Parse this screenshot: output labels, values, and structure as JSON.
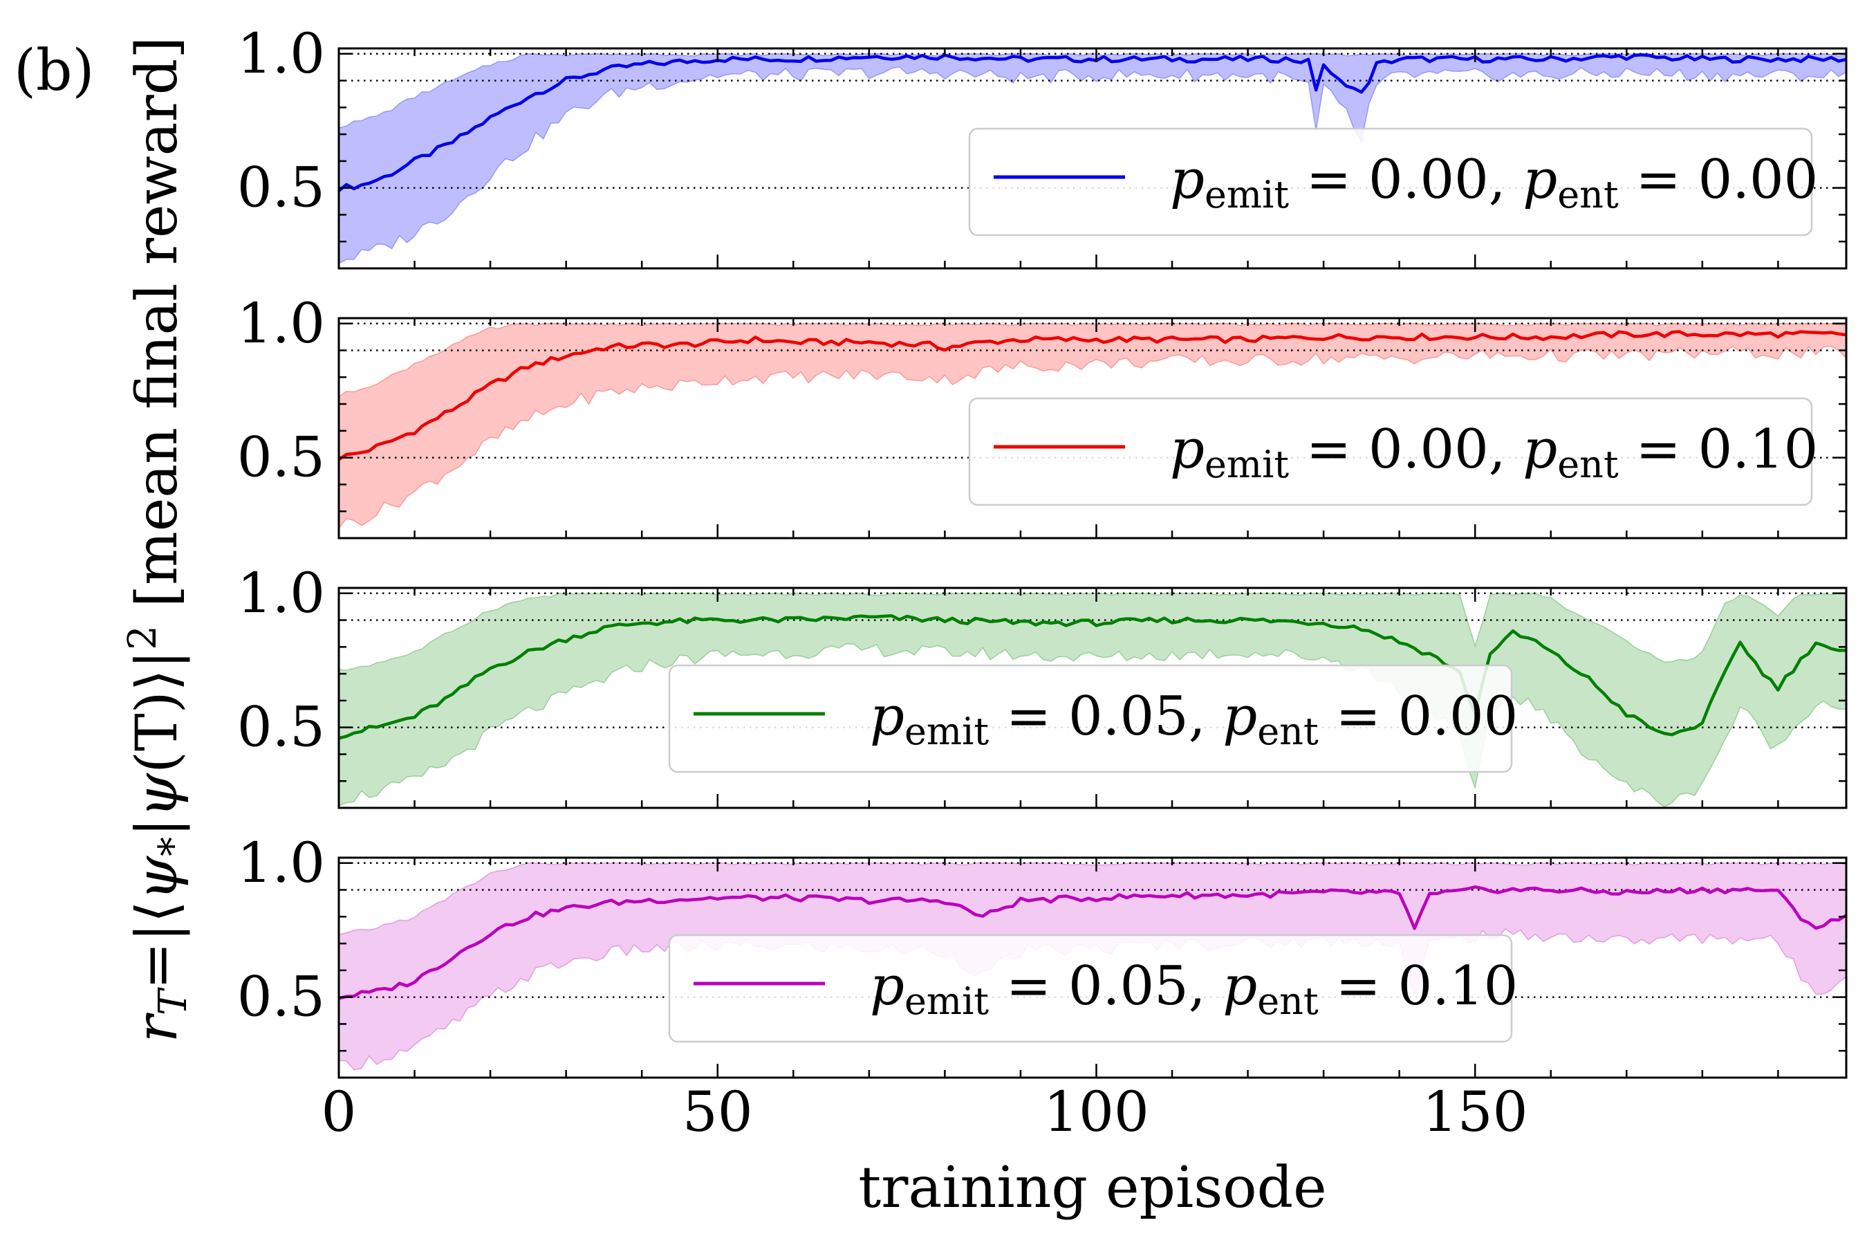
{
  "panel_label": "(b)",
  "ylabel": {
    "r": "r",
    "r_sub": "T",
    "eq": "=|⟨",
    "psi": "ψ",
    "psi_sub": "*",
    "bar": "|",
    "psi2": "ψ",
    "paren": "(T)⟩|",
    "sup": "2",
    "rest": " [mean final reward]"
  },
  "xlabel": "training episode",
  "yticks": [
    "0.5",
    "1.0"
  ],
  "xticks": [
    "0",
    "50",
    "100",
    "150"
  ],
  "chart_data": [
    {
      "type": "line",
      "title": "",
      "xlabel": "training episode",
      "ylabel": "r_T=|⟨ψ*|ψ(T)⟩|² [mean final reward]",
      "xlim": [
        0,
        199
      ],
      "ylim": [
        0.2,
        1.02
      ],
      "yticks": [
        0.5,
        1.0
      ],
      "reference_lines": [
        0.5,
        0.9,
        1.0
      ],
      "color": "#0000ee",
      "fill_color": "#a8a8ff",
      "legend": {
        "p_emit": "0.00",
        "p_ent": "0.00",
        "placement": "right"
      },
      "series": [
        {
          "name": "p_emit = 0.00, p_ent = 0.00",
          "anchors_x": [
            0,
            3,
            6,
            10,
            15,
            20,
            25,
            30,
            35,
            40,
            45,
            50,
            60,
            70,
            80,
            90,
            100,
            110,
            120,
            125,
            128,
            129,
            130,
            131,
            132,
            133,
            134,
            135,
            136,
            137,
            140,
            145,
            150,
            160,
            170,
            180,
            190,
            199
          ],
          "mean": [
            0.5,
            0.51,
            0.54,
            0.6,
            0.67,
            0.76,
            0.84,
            0.9,
            0.94,
            0.96,
            0.97,
            0.98,
            0.98,
            0.99,
            0.99,
            0.98,
            0.98,
            0.98,
            0.98,
            0.98,
            0.97,
            0.87,
            0.96,
            0.92,
            0.9,
            0.89,
            0.87,
            0.85,
            0.9,
            0.96,
            0.98,
            0.98,
            0.98,
            0.98,
            0.99,
            0.98,
            0.98,
            0.98
          ],
          "upper": [
            0.73,
            0.75,
            0.78,
            0.84,
            0.9,
            0.96,
            1.0,
            1.0,
            1.0,
            1.0,
            1.0,
            1.0,
            1.0,
            1.0,
            1.0,
            1.0,
            1.0,
            1.0,
            1.0,
            1.0,
            1.0,
            1.0,
            1.0,
            1.0,
            1.0,
            1.0,
            1.0,
            1.0,
            1.0,
            1.0,
            1.0,
            1.0,
            1.0,
            1.0,
            1.0,
            1.0,
            1.0,
            1.0
          ],
          "lower": [
            0.23,
            0.25,
            0.28,
            0.33,
            0.42,
            0.55,
            0.66,
            0.77,
            0.84,
            0.88,
            0.9,
            0.92,
            0.92,
            0.93,
            0.93,
            0.91,
            0.92,
            0.92,
            0.92,
            0.91,
            0.88,
            0.7,
            0.88,
            0.84,
            0.8,
            0.78,
            0.72,
            0.68,
            0.8,
            0.88,
            0.92,
            0.92,
            0.92,
            0.92,
            0.93,
            0.92,
            0.92,
            0.92
          ]
        }
      ]
    },
    {
      "type": "line",
      "title": "",
      "xlabel": "training episode",
      "ylabel": "",
      "xlim": [
        0,
        199
      ],
      "ylim": [
        0.2,
        1.02
      ],
      "yticks": [
        0.5,
        1.0
      ],
      "reference_lines": [
        0.5,
        0.9,
        1.0
      ],
      "color": "#ee0000",
      "fill_color": "#ffb0b0",
      "legend": {
        "p_emit": "0.00",
        "p_ent": "0.10",
        "placement": "right"
      },
      "series": [
        {
          "name": "p_emit = 0.00, p_ent = 0.10",
          "anchors_x": [
            0,
            3,
            6,
            10,
            15,
            20,
            25,
            30,
            35,
            40,
            45,
            50,
            55,
            60,
            70,
            78,
            80,
            85,
            90,
            100,
            110,
            120,
            130,
            140,
            150,
            160,
            170,
            180,
            190,
            199
          ],
          "mean": [
            0.5,
            0.52,
            0.55,
            0.6,
            0.68,
            0.77,
            0.84,
            0.88,
            0.91,
            0.92,
            0.92,
            0.93,
            0.94,
            0.93,
            0.93,
            0.92,
            0.91,
            0.93,
            0.94,
            0.94,
            0.94,
            0.94,
            0.95,
            0.95,
            0.95,
            0.95,
            0.96,
            0.96,
            0.96,
            0.96
          ],
          "upper": [
            0.73,
            0.76,
            0.79,
            0.85,
            0.92,
            0.98,
            1.0,
            1.0,
            1.0,
            1.0,
            1.0,
            1.0,
            1.0,
            1.0,
            1.0,
            1.0,
            1.0,
            1.0,
            1.0,
            1.0,
            1.0,
            1.0,
            1.0,
            1.0,
            1.0,
            1.0,
            1.0,
            1.0,
            1.0,
            1.0
          ],
          "lower": [
            0.25,
            0.27,
            0.31,
            0.37,
            0.46,
            0.56,
            0.64,
            0.7,
            0.74,
            0.76,
            0.77,
            0.79,
            0.8,
            0.8,
            0.81,
            0.8,
            0.79,
            0.82,
            0.84,
            0.85,
            0.86,
            0.86,
            0.87,
            0.87,
            0.88,
            0.88,
            0.88,
            0.89,
            0.89,
            0.89
          ]
        }
      ]
    },
    {
      "type": "line",
      "title": "",
      "xlabel": "training episode",
      "ylabel": "",
      "xlim": [
        0,
        199
      ],
      "ylim": [
        0.2,
        1.02
      ],
      "yticks": [
        0.5,
        1.0
      ],
      "reference_lines": [
        0.5,
        0.9,
        1.0
      ],
      "color": "#008000",
      "fill_color": "#b6dcb6",
      "legend": {
        "p_emit": "0.05",
        "p_ent": "0.00",
        "placement": "center"
      },
      "series": [
        {
          "name": "p_emit = 0.05, p_ent = 0.00",
          "anchors_x": [
            0,
            5,
            10,
            15,
            20,
            25,
            30,
            35,
            40,
            50,
            60,
            70,
            80,
            90,
            100,
            110,
            120,
            130,
            135,
            140,
            145,
            148,
            150,
            152,
            155,
            158,
            160,
            165,
            170,
            175,
            178,
            180,
            183,
            185,
            188,
            190,
            193,
            195,
            198,
            199
          ],
          "mean": [
            0.47,
            0.5,
            0.54,
            0.62,
            0.72,
            0.78,
            0.83,
            0.87,
            0.89,
            0.9,
            0.9,
            0.91,
            0.9,
            0.89,
            0.89,
            0.9,
            0.9,
            0.89,
            0.87,
            0.82,
            0.76,
            0.7,
            0.55,
            0.78,
            0.85,
            0.82,
            0.78,
            0.68,
            0.55,
            0.47,
            0.49,
            0.52,
            0.7,
            0.82,
            0.7,
            0.65,
            0.75,
            0.82,
            0.78,
            0.78
          ],
          "upper": [
            0.71,
            0.74,
            0.78,
            0.86,
            0.94,
            0.98,
            1.0,
            1.0,
            1.0,
            1.0,
            1.0,
            1.0,
            1.0,
            1.0,
            1.0,
            1.0,
            1.0,
            1.0,
            1.0,
            1.0,
            1.0,
            1.0,
            0.8,
            1.0,
            1.0,
            1.0,
            0.98,
            0.9,
            0.82,
            0.75,
            0.75,
            0.78,
            0.96,
            1.0,
            0.96,
            0.92,
            1.0,
            1.0,
            1.0,
            1.0
          ],
          "lower": [
            0.23,
            0.26,
            0.3,
            0.38,
            0.48,
            0.56,
            0.62,
            0.68,
            0.73,
            0.77,
            0.78,
            0.79,
            0.78,
            0.77,
            0.76,
            0.77,
            0.78,
            0.76,
            0.72,
            0.64,
            0.55,
            0.45,
            0.25,
            0.55,
            0.62,
            0.58,
            0.52,
            0.4,
            0.28,
            0.22,
            0.24,
            0.3,
            0.45,
            0.58,
            0.47,
            0.42,
            0.53,
            0.6,
            0.58,
            0.58
          ]
        }
      ]
    },
    {
      "type": "line",
      "title": "",
      "xlabel": "training episode",
      "ylabel": "",
      "xlim": [
        0,
        199
      ],
      "ylim": [
        0.2,
        1.02
      ],
      "yticks": [
        0.5,
        1.0
      ],
      "reference_lines": [
        0.5,
        0.9,
        1.0
      ],
      "color": "#bb00bb",
      "fill_color": "#edb8ed",
      "legend": {
        "p_emit": "0.05",
        "p_ent": "0.10",
        "placement": "center"
      },
      "series": [
        {
          "name": "p_emit = 0.05, p_ent = 0.10",
          "anchors_x": [
            0,
            5,
            10,
            15,
            20,
            25,
            30,
            35,
            40,
            50,
            60,
            70,
            80,
            85,
            90,
            100,
            110,
            120,
            130,
            138,
            140,
            142,
            144,
            150,
            160,
            170,
            180,
            185,
            188,
            190,
            193,
            195,
            199
          ],
          "mean": [
            0.5,
            0.52,
            0.56,
            0.65,
            0.74,
            0.8,
            0.83,
            0.85,
            0.86,
            0.87,
            0.87,
            0.86,
            0.86,
            0.8,
            0.86,
            0.87,
            0.88,
            0.88,
            0.89,
            0.89,
            0.88,
            0.76,
            0.88,
            0.9,
            0.9,
            0.89,
            0.9,
            0.9,
            0.9,
            0.89,
            0.8,
            0.76,
            0.8
          ],
          "upper": [
            0.73,
            0.76,
            0.8,
            0.88,
            0.96,
            1.0,
            1.0,
            1.0,
            1.0,
            1.0,
            1.0,
            1.0,
            1.0,
            1.0,
            1.0,
            1.0,
            1.0,
            1.0,
            1.0,
            1.0,
            1.0,
            1.0,
            1.0,
            1.0,
            1.0,
            1.0,
            1.0,
            1.0,
            1.0,
            1.0,
            1.0,
            1.0,
            1.0
          ],
          "lower": [
            0.24,
            0.27,
            0.31,
            0.4,
            0.5,
            0.58,
            0.63,
            0.66,
            0.68,
            0.69,
            0.69,
            0.68,
            0.67,
            0.58,
            0.67,
            0.68,
            0.7,
            0.7,
            0.71,
            0.71,
            0.7,
            0.5,
            0.7,
            0.73,
            0.73,
            0.71,
            0.72,
            0.72,
            0.72,
            0.7,
            0.58,
            0.52,
            0.58
          ]
        }
      ]
    }
  ]
}
